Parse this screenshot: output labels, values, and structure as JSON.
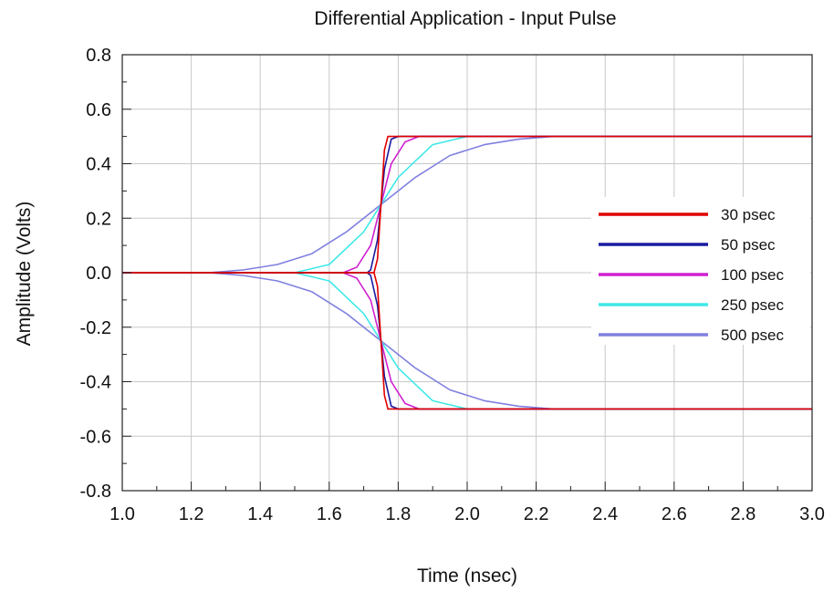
{
  "chart_data": {
    "type": "line",
    "title": "Differential Application - Input Pulse",
    "xlabel": "Time (nsec)",
    "ylabel": "Amplitude (Volts)",
    "xlim": [
      1.0,
      3.0
    ],
    "ylim": [
      -0.8,
      0.8
    ],
    "x_ticks": [
      "1.0",
      "1.2",
      "1.4",
      "1.6",
      "1.8",
      "2.0",
      "2.2",
      "2.4",
      "2.6",
      "2.8",
      "3.0"
    ],
    "y_ticks": [
      "-0.8",
      "-0.6",
      "-0.4",
      "-0.2",
      "0.0",
      "0.2",
      "0.4",
      "0.6",
      "0.8"
    ],
    "grid": true,
    "legend_position": "right",
    "series": [
      {
        "name": "30 psec",
        "color": "#e00000",
        "x": [
          1.0,
          1.73,
          1.74,
          1.75,
          1.76,
          1.77,
          1.78,
          3.0
        ],
        "y_pos": [
          0.0,
          0.0,
          0.05,
          0.25,
          0.45,
          0.5,
          0.5,
          0.5
        ],
        "y_neg": [
          0.0,
          0.0,
          -0.05,
          -0.25,
          -0.45,
          -0.5,
          -0.5,
          -0.5
        ]
      },
      {
        "name": "50 psec",
        "color": "#1a1aa0",
        "x": [
          1.0,
          1.71,
          1.72,
          1.74,
          1.75,
          1.76,
          1.78,
          1.8,
          3.0
        ],
        "y_pos": [
          0.0,
          0.0,
          0.01,
          0.12,
          0.25,
          0.38,
          0.49,
          0.5,
          0.5
        ],
        "y_neg": [
          0.0,
          0.0,
          -0.01,
          -0.12,
          -0.25,
          -0.38,
          -0.49,
          -0.5,
          -0.5
        ]
      },
      {
        "name": "100 psec",
        "color": "#d020d0",
        "x": [
          1.0,
          1.64,
          1.68,
          1.72,
          1.75,
          1.78,
          1.82,
          1.86,
          3.0
        ],
        "y_pos": [
          0.0,
          0.0,
          0.02,
          0.1,
          0.25,
          0.4,
          0.48,
          0.5,
          0.5
        ],
        "y_neg": [
          0.0,
          0.0,
          -0.02,
          -0.1,
          -0.25,
          -0.4,
          -0.48,
          -0.5,
          -0.5
        ]
      },
      {
        "name": "250 psec",
        "color": "#40e8e8",
        "x": [
          1.0,
          1.5,
          1.6,
          1.7,
          1.75,
          1.8,
          1.9,
          2.0,
          2.1,
          3.0
        ],
        "y_pos": [
          0.0,
          0.0,
          0.03,
          0.15,
          0.25,
          0.35,
          0.47,
          0.5,
          0.5,
          0.5
        ],
        "y_neg": [
          0.0,
          0.0,
          -0.03,
          -0.15,
          -0.25,
          -0.35,
          -0.47,
          -0.5,
          -0.5,
          -0.5
        ]
      },
      {
        "name": "500 psec",
        "color": "#8080e0",
        "x": [
          1.0,
          1.25,
          1.35,
          1.45,
          1.55,
          1.65,
          1.75,
          1.85,
          1.95,
          2.05,
          2.15,
          2.25,
          2.35,
          3.0
        ],
        "y_pos": [
          0.0,
          0.0,
          0.01,
          0.03,
          0.07,
          0.15,
          0.25,
          0.35,
          0.43,
          0.47,
          0.49,
          0.5,
          0.5,
          0.5
        ],
        "y_neg": [
          0.0,
          0.0,
          -0.01,
          -0.03,
          -0.07,
          -0.15,
          -0.25,
          -0.35,
          -0.43,
          -0.47,
          -0.49,
          -0.5,
          -0.5,
          -0.5
        ]
      }
    ]
  }
}
